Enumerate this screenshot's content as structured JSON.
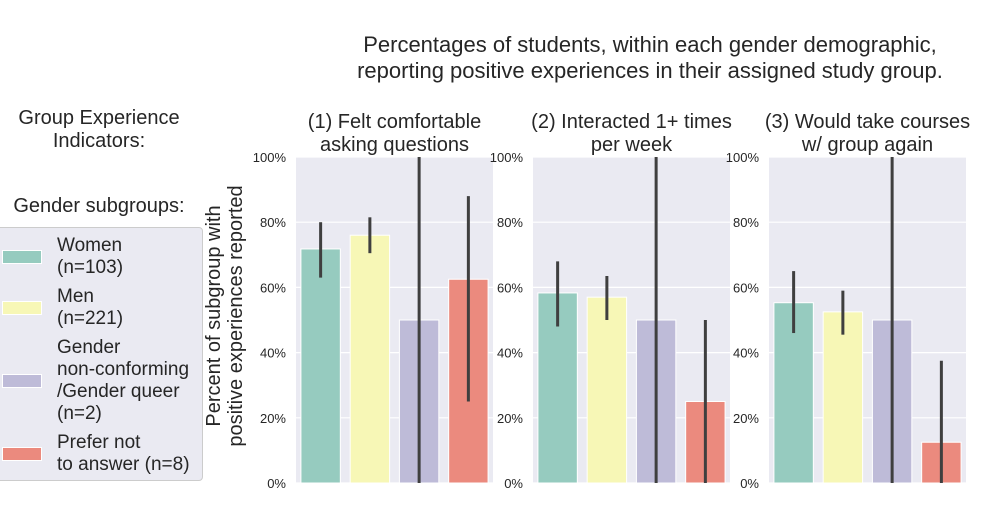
{
  "suptitle": [
    "Percentages of students, within each gender demographic,",
    "reporting positive experiences in their assigned study group."
  ],
  "left_titles": {
    "indicators": [
      "Group Experience",
      "Indicators:"
    ],
    "subgroups": "Gender subgroups:"
  },
  "legend": [
    {
      "label": "Women\n(n=103)",
      "color": "#96cbbf"
    },
    {
      "label": "Men\n(n=221)",
      "color": "#f7f7b6"
    },
    {
      "label": "Gender\nnon-conforming\n/Gender queer\n(n=2)",
      "color": "#bebbd8"
    },
    {
      "label": "Prefer not\nto answer (n=8)",
      "color": "#eb8a7e"
    }
  ],
  "ylabel": "Percent of subgroup with\npositive experiences reported",
  "chart_data": {
    "type": "bar",
    "ylim": [
      0,
      100
    ],
    "yticks": [
      "0%",
      "20%",
      "40%",
      "60%",
      "80%",
      "100%"
    ],
    "grid": true,
    "categories": [
      "Women",
      "Men",
      "Gender non-conforming /Gender queer",
      "Prefer not to answer"
    ],
    "colors": [
      "#96cbbf",
      "#f7f7b6",
      "#bebbd8",
      "#eb8a7e"
    ],
    "panels": [
      {
        "title": [
          "(1) Felt comfortable",
          "asking questions"
        ],
        "values": [
          71.8,
          76.0,
          50.0,
          62.5
        ],
        "ci_low": [
          63,
          70.5,
          0,
          25
        ],
        "ci_high": [
          80,
          81.5,
          100,
          88
        ]
      },
      {
        "title": [
          "(2) Interacted 1+ times",
          "per week"
        ],
        "values": [
          58.3,
          57.0,
          50.0,
          25.0
        ],
        "ci_low": [
          48,
          50,
          0,
          0
        ],
        "ci_high": [
          68,
          63.5,
          100,
          50
        ]
      },
      {
        "title": [
          "(3) Would take courses",
          "w/ group again"
        ],
        "values": [
          55.3,
          52.5,
          50.0,
          12.5
        ],
        "ci_low": [
          46,
          45.5,
          0,
          0
        ],
        "ci_high": [
          65,
          59,
          100,
          37.5
        ]
      }
    ]
  }
}
